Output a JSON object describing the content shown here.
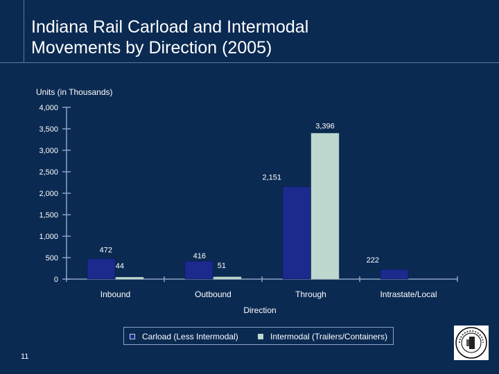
{
  "slide": {
    "title_line1": "Indiana Rail  Carload and Intermodal",
    "title_line2": "Movements by Direction (2005)",
    "page_number": "11"
  },
  "colors": {
    "background": "#0b2a52",
    "carload": "#1c2a8e",
    "intermodal": "#bfd8cf",
    "axis": "#8da3c4"
  },
  "chart_data": {
    "type": "bar",
    "title": "Indiana Rail  Carload and Intermodal Movements by Direction (2005)",
    "ylabel": "Units (in Thousands)",
    "xlabel": "Direction",
    "categories": [
      "Inbound",
      "Outbound",
      "Through",
      "Intrastate/Local"
    ],
    "series": [
      {
        "name": "Carload (Less Intermodal)",
        "values": [
          472,
          416,
          2151,
          222
        ],
        "labels": [
          "472",
          "416",
          "2,151",
          "222"
        ]
      },
      {
        "name": "Intermodal (Trailers/Containers)",
        "values": [
          44,
          51,
          3396,
          null
        ],
        "labels": [
          "44",
          "51",
          "3,396",
          ""
        ]
      }
    ],
    "ylim": [
      0,
      4000
    ],
    "yticks": [
      0,
      500,
      1000,
      1500,
      2000,
      2500,
      3000,
      3500,
      4000
    ],
    "ytick_labels": [
      "0",
      "500",
      "1,000",
      "1,500",
      "2,000",
      "2,500",
      "3,000",
      "3,500",
      "4,000"
    ],
    "grid": false,
    "legend_position": "bottom"
  },
  "seal": {
    "icon": "indiana-state-seal-icon"
  }
}
